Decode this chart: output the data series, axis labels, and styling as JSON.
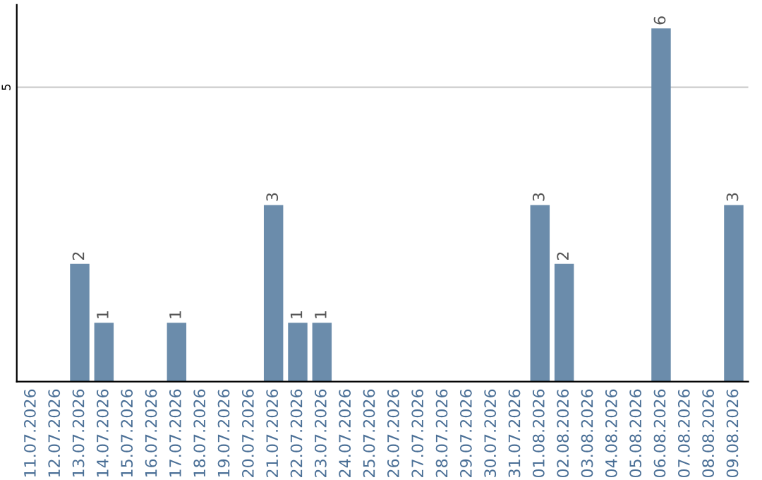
{
  "chart_data": {
    "type": "bar",
    "categories": [
      "11.07.2026",
      "12.07.2026",
      "13.07.2026",
      "14.07.2026",
      "15.07.2026",
      "16.07.2026",
      "17.07.2026",
      "18.07.2026",
      "19.07.2026",
      "20.07.2026",
      "21.07.2026",
      "22.07.2026",
      "23.07.2026",
      "24.07.2026",
      "25.07.2026",
      "26.07.2026",
      "27.07.2026",
      "28.07.2026",
      "29.07.2026",
      "30.07.2026",
      "31.07.2026",
      "01.08.2026",
      "02.08.2026",
      "03.08.2026",
      "04.08.2026",
      "05.08.2026",
      "06.08.2026",
      "07.08.2026",
      "08.08.2026",
      "09.08.2026"
    ],
    "values": [
      0,
      0,
      2,
      1,
      0,
      0,
      1,
      0,
      0,
      0,
      3,
      1,
      1,
      0,
      0,
      0,
      0,
      0,
      0,
      0,
      0,
      3,
      2,
      0,
      0,
      0,
      6,
      0,
      0,
      3
    ],
    "value_labels": [
      null,
      null,
      "2",
      "1",
      null,
      null,
      "1",
      null,
      null,
      null,
      "3",
      "1",
      "1",
      null,
      null,
      null,
      null,
      null,
      null,
      null,
      null,
      "3",
      "2",
      null,
      null,
      null,
      "6",
      null,
      null,
      "3"
    ],
    "color": "#6b8cab",
    "ylim": [
      0,
      6.4
    ],
    "yticks": [
      5
    ],
    "grid": "y"
  }
}
